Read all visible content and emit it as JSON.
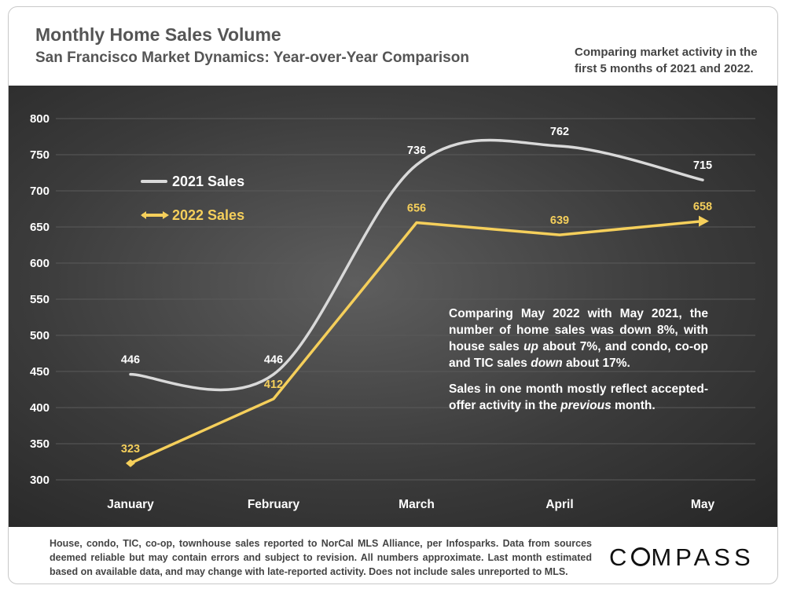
{
  "header": {
    "title": "Monthly Home Sales Volume",
    "subtitle": "San Francisco Market Dynamics: Year-over-Year Comparison",
    "note": "Comparing market activity in the first 5 months of 2021 and 2022."
  },
  "annotation": {
    "p1_a": "Comparing May 2022 with May 2021, the number of home sales was down 8%, with house sales ",
    "p1_up": "up",
    "p1_b": " about 7%, and condo, co-op and TIC sales ",
    "p1_down": "down",
    "p1_c": " about 17%.",
    "p2_a": "Sales in one month mostly reflect accepted-offer activity in the ",
    "p2_prev": "previous",
    "p2_b": " month."
  },
  "footer": {
    "text": "House, condo, TIC, co-op, townhouse sales reported to NorCal MLS Alliance, per Infosparks. Data from sources deemed reliable but may contain errors and subject to revision. All numbers approximate. Last month estimated based on available data, and may change with late-reported activity. Does not include sales unreported to MLS.",
    "logo_c": "C",
    "logo_rest": "MPASS"
  },
  "colors": {
    "s2021": "#d9d9d9",
    "s2022": "#f5cf5b"
  },
  "chart_data": {
    "type": "line",
    "title": "Monthly Home Sales Volume",
    "categories": [
      "January",
      "February",
      "March",
      "April",
      "May"
    ],
    "yticks": [
      "300",
      "350",
      "400",
      "450",
      "500",
      "550",
      "600",
      "650",
      "700",
      "750",
      "800"
    ],
    "ylim": [
      300,
      800
    ],
    "series": [
      {
        "name": "2021 Sales",
        "values": [
          446,
          446,
          736,
          762,
          715
        ],
        "labels": [
          "446",
          "446",
          "736",
          "762",
          "715"
        ]
      },
      {
        "name": "2022 Sales",
        "values": [
          323,
          412,
          656,
          639,
          658
        ],
        "labels": [
          "323",
          "412",
          "656",
          "639",
          "658"
        ]
      }
    ]
  }
}
